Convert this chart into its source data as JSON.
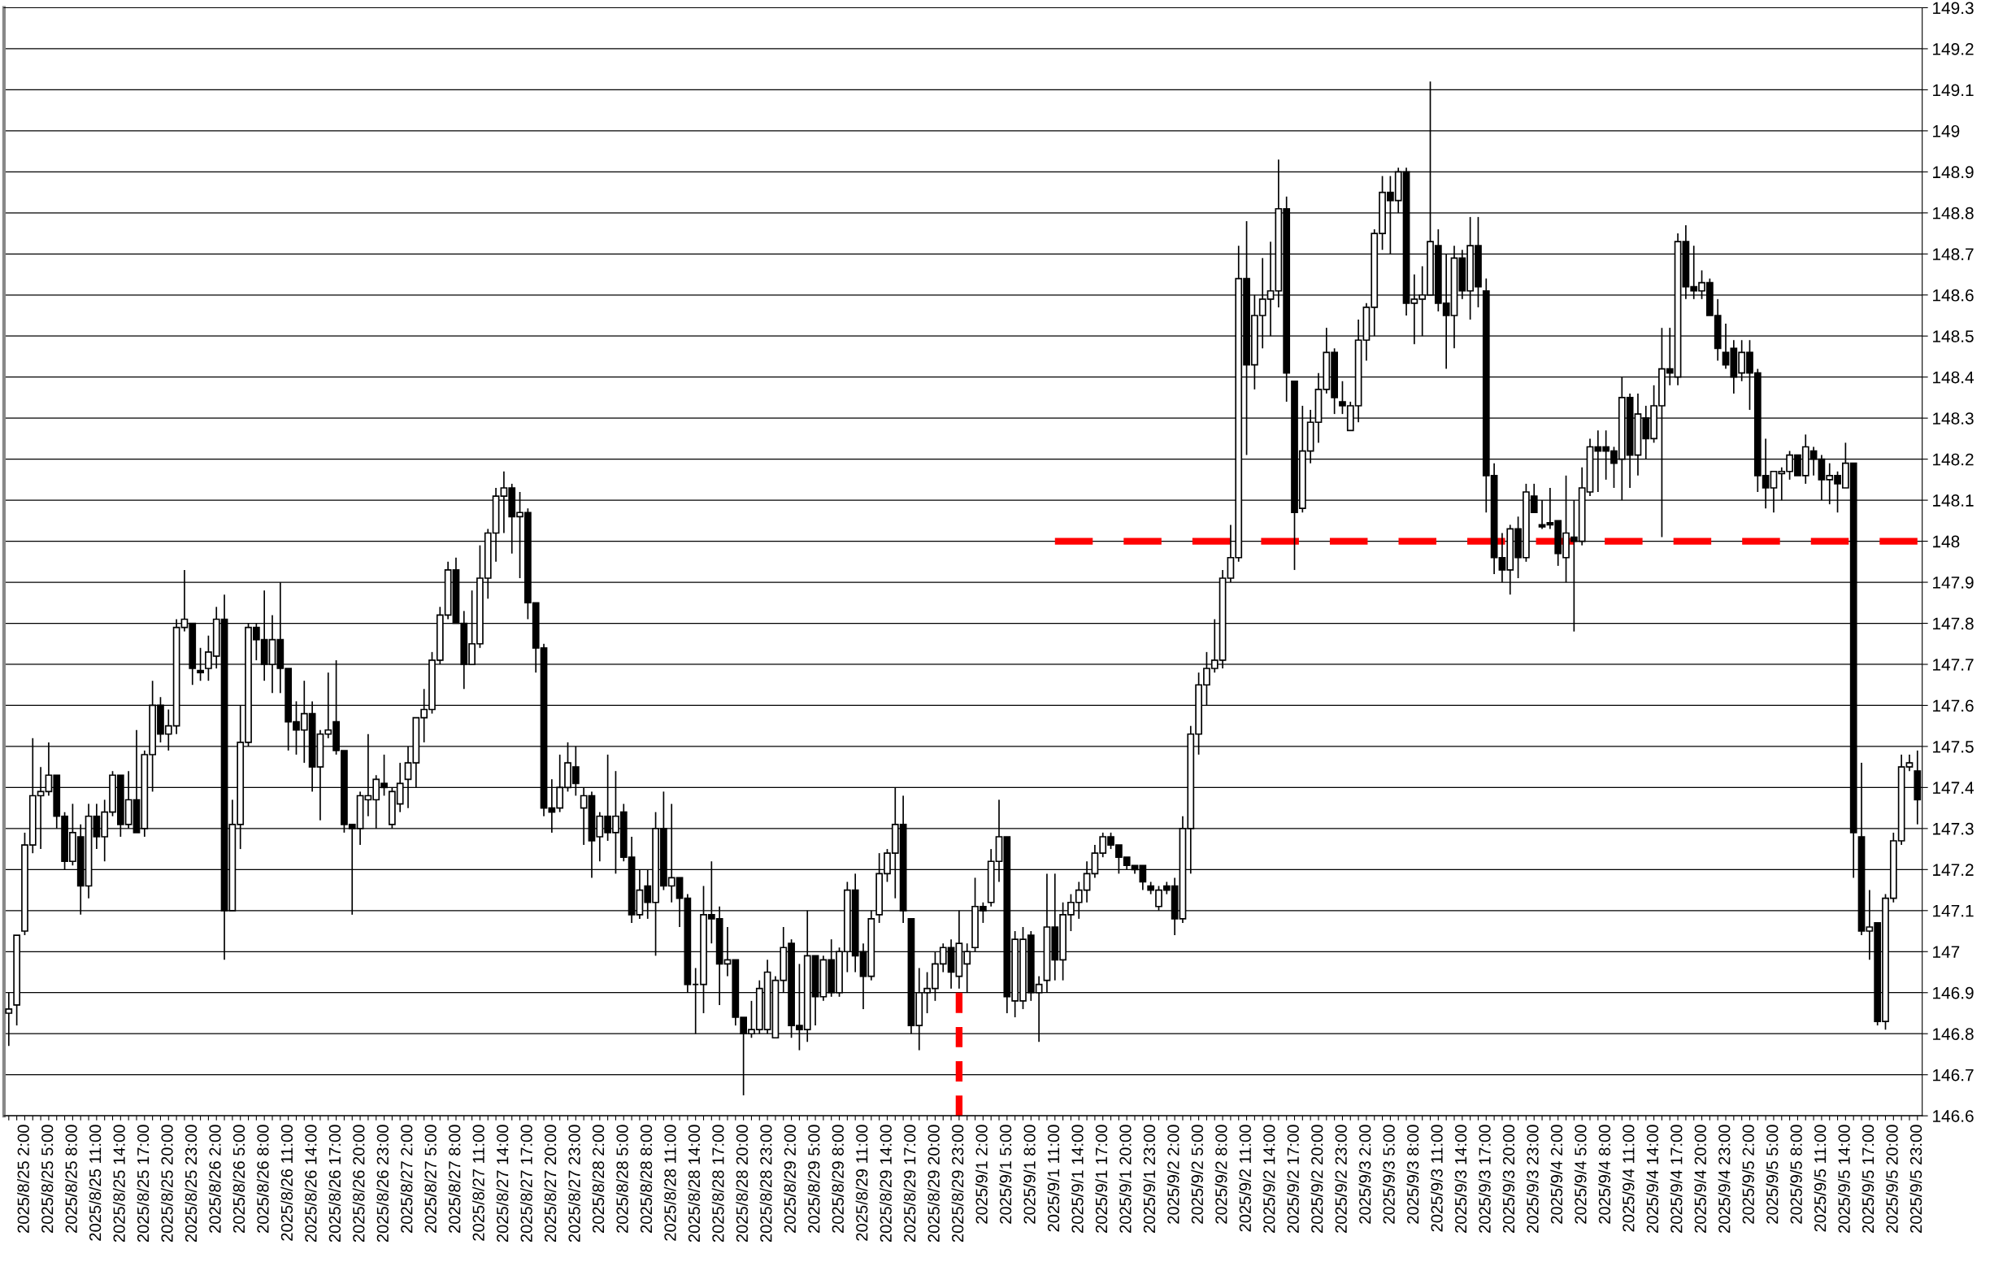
{
  "chart_data": {
    "type": "candlestick",
    "categories": [
      null,
      null,
      "2025/8/25 2:00",
      null,
      null,
      "2025/8/25 5:00",
      null,
      null,
      "2025/8/25 8:00",
      null,
      null,
      "2025/8/25 11:00",
      null,
      null,
      "2025/8/25 14:00",
      null,
      null,
      "2025/8/25 17:00",
      null,
      null,
      "2025/8/25 20:00",
      null,
      null,
      "2025/8/25 23:00",
      null,
      null,
      "2025/8/26 2:00",
      null,
      null,
      "2025/8/26 5:00",
      null,
      null,
      "2025/8/26 8:00",
      null,
      null,
      "2025/8/26 11:00",
      null,
      null,
      "2025/8/26 14:00",
      null,
      null,
      "2025/8/26 17:00",
      null,
      null,
      "2025/8/26 20:00",
      null,
      null,
      "2025/8/26 23:00",
      null,
      null,
      "2025/8/27 2:00",
      null,
      null,
      "2025/8/27 5:00",
      null,
      null,
      "2025/8/27 8:00",
      null,
      null,
      "2025/8/27 11:00",
      null,
      null,
      "2025/8/27 14:00",
      null,
      null,
      "2025/8/27 17:00",
      null,
      null,
      "2025/8/27 20:00",
      null,
      null,
      "2025/8/27 23:00",
      null,
      null,
      "2025/8/28 2:00",
      null,
      null,
      "2025/8/28 5:00",
      null,
      null,
      "2025/8/28 8:00",
      null,
      null,
      "2025/8/28 11:00",
      null,
      null,
      "2025/8/28 14:00",
      null,
      null,
      "2025/8/28 17:00",
      null,
      null,
      "2025/8/28 20:00",
      null,
      null,
      "2025/8/28 23:00",
      null,
      null,
      "2025/8/29 2:00",
      null,
      null,
      "2025/8/29 5:00",
      null,
      null,
      "2025/8/29 8:00",
      null,
      null,
      "2025/8/29 11:00",
      null,
      null,
      "2025/8/29 14:00",
      null,
      null,
      "2025/8/29 17:00",
      null,
      null,
      "2025/8/29 20:00",
      null,
      null,
      "2025/8/29 23:00",
      null,
      null,
      "2025/9/1 2:00",
      null,
      null,
      "2025/9/1 5:00",
      null,
      null,
      "2025/9/1 8:00",
      null,
      null,
      "2025/9/1 11:00",
      null,
      null,
      "2025/9/1 14:00",
      null,
      null,
      "2025/9/1 17:00",
      null,
      null,
      "2025/9/1 20:00",
      null,
      null,
      "2025/9/1 23:00",
      null,
      null,
      "2025/9/2 2:00",
      null,
      null,
      "2025/9/2 5:00",
      null,
      null,
      "2025/9/2 8:00",
      null,
      null,
      "2025/9/2 11:00",
      null,
      null,
      "2025/9/2 14:00",
      null,
      null,
      "2025/9/2 17:00",
      null,
      null,
      "2025/9/2 20:00",
      null,
      null,
      "2025/9/2 23:00",
      null,
      null,
      "2025/9/3 2:00",
      null,
      null,
      "2025/9/3 5:00",
      null,
      null,
      "2025/9/3 8:00",
      null,
      null,
      "2025/9/3 11:00",
      null,
      null,
      "2025/9/3 14:00",
      null,
      null,
      "2025/9/3 17:00",
      null,
      null,
      "2025/9/3 20:00",
      null,
      null,
      "2025/9/3 23:00",
      null,
      null,
      "2025/9/4 2:00",
      null,
      null,
      "2025/9/4 5:00",
      null,
      null,
      "2025/9/4 8:00",
      null,
      null,
      "2025/9/4 11:00",
      null,
      null,
      "2025/9/4 14:00",
      null,
      null,
      "2025/9/4 17:00",
      null,
      null,
      "2025/9/4 20:00",
      null,
      null,
      "2025/9/4 23:00",
      null,
      null,
      "2025/9/5 2:00",
      null,
      null,
      "2025/9/5 5:00",
      null,
      null,
      "2025/9/5 8:00",
      null,
      null,
      "2025/9/5 11:00",
      null,
      null,
      "2025/9/5 14:00",
      null,
      null,
      "2025/9/5 17:00",
      null,
      null,
      "2025/9/5 20:00",
      null,
      null,
      "2025/9/5 23:00"
    ],
    "ohlc": [
      [
        146.85,
        146.9,
        146.77,
        146.86
      ],
      [
        146.87,
        147.04,
        146.82,
        147.04
      ],
      [
        147.05,
        147.29,
        147.04,
        147.26
      ],
      [
        147.26,
        147.52,
        147.24,
        147.38
      ],
      [
        147.38,
        147.45,
        147.25,
        147.39
      ],
      [
        147.39,
        147.51,
        147.38,
        147.43
      ],
      [
        147.43,
        147.43,
        147.3,
        147.33
      ],
      [
        147.33,
        147.34,
        147.2,
        147.22
      ],
      [
        147.22,
        147.36,
        147.21,
        147.29
      ],
      [
        147.28,
        147.31,
        147.09,
        147.16
      ],
      [
        147.16,
        147.36,
        147.13,
        147.33
      ],
      [
        147.33,
        147.36,
        147.25,
        147.28
      ],
      [
        147.28,
        147.37,
        147.22,
        147.34
      ],
      [
        147.34,
        147.44,
        147.33,
        147.43
      ],
      [
        147.43,
        147.43,
        147.28,
        147.31
      ],
      [
        147.31,
        147.44,
        147.3,
        147.37
      ],
      [
        147.37,
        147.54,
        147.29,
        147.29
      ],
      [
        147.3,
        147.49,
        147.28,
        147.48
      ],
      [
        147.48,
        147.66,
        147.39,
        147.6
      ],
      [
        147.6,
        147.62,
        147.51,
        147.53
      ],
      [
        147.53,
        147.59,
        147.49,
        147.55
      ],
      [
        147.55,
        147.81,
        147.53,
        147.79
      ],
      [
        147.79,
        147.93,
        147.78,
        147.81
      ],
      [
        147.8,
        147.8,
        147.65,
        147.69
      ],
      [
        147.685,
        147.74,
        147.66,
        147.68
      ],
      [
        147.69,
        147.77,
        147.66,
        147.73
      ],
      [
        147.72,
        147.84,
        147.69,
        147.81
      ],
      [
        147.81,
        147.87,
        146.98,
        147.1
      ],
      [
        147.1,
        147.37,
        147.1,
        147.31
      ],
      [
        147.31,
        147.6,
        147.25,
        147.51
      ],
      [
        147.51,
        147.8,
        147.5,
        147.79
      ],
      [
        147.79,
        147.8,
        147.71,
        147.76
      ],
      [
        147.76,
        147.88,
        147.66,
        147.7
      ],
      [
        147.7,
        147.82,
        147.63,
        147.76
      ],
      [
        147.76,
        147.9,
        147.63,
        147.69
      ],
      [
        147.69,
        147.69,
        147.49,
        147.56
      ],
      [
        147.56,
        147.61,
        147.48,
        147.54
      ],
      [
        147.54,
        147.66,
        147.46,
        147.58
      ],
      [
        147.58,
        147.61,
        147.39,
        147.45
      ],
      [
        147.45,
        147.54,
        147.32,
        147.53
      ],
      [
        147.53,
        147.68,
        147.52,
        147.54
      ],
      [
        147.56,
        147.71,
        147.48,
        147.49
      ],
      [
        147.49,
        147.49,
        147.29,
        147.31
      ],
      [
        147.31,
        147.31,
        147.09,
        147.3
      ],
      [
        147.3,
        147.39,
        147.26,
        147.38
      ],
      [
        147.37,
        147.53,
        147.33,
        147.38
      ],
      [
        147.37,
        147.43,
        147.3,
        147.42
      ],
      [
        147.41,
        147.48,
        147.38,
        147.4
      ],
      [
        147.31,
        147.4,
        147.3,
        147.39
      ],
      [
        147.36,
        147.46,
        147.34,
        147.41
      ],
      [
        147.42,
        147.5,
        147.35,
        147.46
      ],
      [
        147.46,
        147.57,
        147.4,
        147.57
      ],
      [
        147.57,
        147.64,
        147.51,
        147.59
      ],
      [
        147.59,
        147.73,
        147.58,
        147.71
      ],
      [
        147.71,
        147.84,
        147.7,
        147.82
      ],
      [
        147.82,
        147.95,
        147.81,
        147.93
      ],
      [
        147.93,
        147.96,
        147.8,
        147.8
      ],
      [
        147.8,
        147.83,
        147.64,
        147.7
      ],
      [
        147.7,
        147.88,
        147.7,
        147.75
      ],
      [
        147.75,
        147.99,
        147.74,
        147.91
      ],
      [
        147.91,
        148.03,
        147.86,
        148.02
      ],
      [
        148.02,
        148.13,
        147.95,
        148.11
      ],
      [
        148.11,
        148.17,
        148.02,
        148.13
      ],
      [
        148.13,
        148.14,
        147.97,
        148.06
      ],
      [
        148.06,
        148.12,
        147.91,
        148.07
      ],
      [
        148.07,
        148.08,
        147.81,
        147.85
      ],
      [
        147.85,
        147.85,
        147.68,
        147.74
      ],
      [
        147.74,
        147.75,
        147.33,
        147.35
      ],
      [
        147.35,
        147.42,
        147.29,
        147.34
      ],
      [
        147.35,
        147.48,
        147.34,
        147.4
      ],
      [
        147.4,
        147.51,
        147.39,
        147.46
      ],
      [
        147.45,
        147.5,
        147.38,
        147.41
      ],
      [
        147.35,
        147.4,
        147.26,
        147.38
      ],
      [
        147.38,
        147.39,
        147.18,
        147.27
      ],
      [
        147.28,
        147.34,
        147.22,
        147.33
      ],
      [
        147.33,
        147.48,
        147.27,
        147.29
      ],
      [
        147.29,
        147.44,
        147.19,
        147.33
      ],
      [
        147.34,
        147.36,
        147.22,
        147.23
      ],
      [
        147.23,
        147.28,
        147.07,
        147.09
      ],
      [
        147.09,
        147.2,
        147.08,
        147.15
      ],
      [
        147.16,
        147.2,
        147.08,
        147.12
      ],
      [
        147.12,
        147.34,
        146.99,
        147.3
      ],
      [
        147.3,
        147.39,
        147.15,
        147.16
      ],
      [
        147.16,
        147.36,
        147.12,
        147.18
      ],
      [
        147.18,
        147.18,
        147.06,
        147.13
      ],
      [
        147.13,
        147.14,
        146.9,
        146.92
      ],
      [
        146.92,
        146.96,
        146.8,
        146.92
      ],
      [
        146.92,
        147.16,
        146.85,
        147.09
      ],
      [
        147.09,
        147.22,
        147.02,
        147.08
      ],
      [
        147.08,
        147.11,
        146.87,
        146.97
      ],
      [
        146.97,
        147.06,
        146.94,
        146.98
      ],
      [
        146.98,
        146.98,
        146.82,
        146.84
      ],
      [
        146.84,
        146.84,
        146.65,
        146.8
      ],
      [
        146.8,
        146.88,
        146.79,
        146.81
      ],
      [
        146.81,
        146.93,
        146.8,
        146.91
      ],
      [
        146.81,
        146.98,
        146.8,
        146.95
      ],
      [
        146.79,
        146.94,
        146.79,
        146.93
      ],
      [
        146.93,
        147.06,
        146.9,
        147.01
      ],
      [
        147.02,
        147.03,
        146.79,
        146.82
      ],
      [
        146.82,
        146.97,
        146.76,
        146.81
      ],
      [
        146.81,
        147.1,
        146.78,
        146.99
      ],
      [
        146.99,
        146.99,
        146.82,
        146.89
      ],
      [
        146.89,
        146.99,
        146.88,
        146.98
      ],
      [
        146.98,
        147.03,
        146.89,
        146.9
      ],
      [
        146.9,
        147.01,
        146.89,
        147.0
      ],
      [
        147.0,
        147.17,
        146.95,
        147.15
      ],
      [
        147.15,
        147.19,
        146.95,
        146.99
      ],
      [
        147.0,
        147.02,
        146.86,
        146.94
      ],
      [
        146.94,
        147.1,
        146.93,
        147.08
      ],
      [
        147.09,
        147.24,
        147.07,
        147.19
      ],
      [
        147.19,
        147.25,
        147.17,
        147.24
      ],
      [
        147.24,
        147.4,
        147.13,
        147.31
      ],
      [
        147.31,
        147.38,
        147.07,
        147.1
      ],
      [
        147.08,
        147.08,
        146.8,
        146.82
      ],
      [
        146.82,
        146.96,
        146.76,
        146.9
      ],
      [
        146.9,
        146.95,
        146.85,
        146.91
      ],
      [
        146.91,
        147.0,
        146.88,
        146.97
      ],
      [
        146.97,
        147.02,
        146.95,
        147.01
      ],
      [
        147.01,
        147.03,
        146.91,
        146.95
      ],
      [
        146.94,
        147.1,
        146.91,
        147.02
      ],
      [
        146.97,
        147.02,
        146.9,
        147.0
      ],
      [
        147.01,
        147.18,
        147.0,
        147.11
      ],
      [
        147.11,
        147.12,
        147.07,
        147.1
      ],
      [
        147.12,
        147.25,
        147.11,
        147.22
      ],
      [
        147.22,
        147.37,
        147.17,
        147.28
      ],
      [
        147.28,
        147.28,
        146.85,
        146.89
      ],
      [
        146.88,
        147.05,
        146.84,
        147.03
      ],
      [
        146.88,
        147.06,
        146.86,
        147.03
      ],
      [
        147.04,
        147.05,
        146.88,
        146.9
      ],
      [
        146.9,
        146.94,
        146.78,
        146.92
      ],
      [
        146.93,
        147.19,
        146.9,
        147.06
      ],
      [
        147.06,
        147.19,
        146.93,
        146.98
      ],
      [
        146.98,
        147.12,
        146.93,
        147.09
      ],
      [
        147.09,
        147.14,
        147.05,
        147.12
      ],
      [
        147.12,
        147.17,
        147.08,
        147.15
      ],
      [
        147.15,
        147.22,
        147.12,
        147.19
      ],
      [
        147.19,
        147.26,
        147.18,
        147.24
      ],
      [
        147.24,
        147.29,
        147.23,
        147.28
      ],
      [
        147.28,
        147.29,
        147.25,
        147.26
      ],
      [
        147.26,
        147.26,
        147.19,
        147.23
      ],
      [
        147.23,
        147.23,
        147.2,
        147.21
      ],
      [
        147.21,
        147.21,
        147.19,
        147.2
      ],
      [
        147.21,
        147.21,
        147.15,
        147.17
      ],
      [
        147.16,
        147.17,
        147.14,
        147.15
      ],
      [
        147.11,
        147.16,
        147.1,
        147.15
      ],
      [
        147.16,
        147.17,
        147.14,
        147.15
      ],
      [
        147.16,
        147.18,
        147.04,
        147.08
      ],
      [
        147.08,
        147.33,
        147.07,
        147.3
      ],
      [
        147.3,
        147.55,
        147.19,
        147.53
      ],
      [
        147.53,
        147.68,
        147.48,
        147.65
      ],
      [
        147.65,
        147.73,
        147.6,
        147.69
      ],
      [
        147.69,
        147.81,
        147.68,
        147.71
      ],
      [
        147.71,
        147.93,
        147.69,
        147.91
      ],
      [
        147.91,
        148.04,
        147.9,
        147.96
      ],
      [
        147.96,
        148.72,
        147.95,
        148.64
      ],
      [
        148.64,
        148.78,
        148.21,
        148.43
      ],
      [
        148.43,
        148.6,
        148.37,
        148.55
      ],
      [
        148.55,
        148.69,
        148.47,
        148.59
      ],
      [
        148.59,
        148.73,
        148.5,
        148.61
      ],
      [
        148.61,
        148.93,
        148.57,
        148.81
      ],
      [
        148.81,
        148.84,
        148.34,
        148.41
      ],
      [
        148.39,
        148.39,
        147.93,
        148.07
      ],
      [
        148.08,
        148.33,
        148.07,
        148.22
      ],
      [
        148.22,
        148.32,
        148.19,
        148.29
      ],
      [
        148.29,
        148.41,
        148.24,
        148.37
      ],
      [
        148.37,
        148.52,
        148.36,
        148.46
      ],
      [
        148.46,
        148.47,
        148.31,
        148.35
      ],
      [
        148.34,
        148.39,
        148.31,
        148.33
      ],
      [
        148.27,
        148.34,
        148.27,
        148.33
      ],
      [
        148.33,
        148.54,
        148.29,
        148.49
      ],
      [
        148.49,
        148.58,
        148.44,
        148.57
      ],
      [
        148.57,
        148.76,
        148.5,
        148.75
      ],
      [
        148.75,
        148.89,
        148.71,
        148.85
      ],
      [
        148.85,
        148.89,
        148.7,
        148.83
      ],
      [
        148.83,
        148.91,
        148.8,
        148.9
      ],
      [
        148.9,
        148.91,
        148.55,
        148.58
      ],
      [
        148.58,
        148.65,
        148.48,
        148.59
      ],
      [
        148.59,
        148.67,
        148.5,
        148.6
      ],
      [
        148.6,
        149.12,
        148.6,
        148.73
      ],
      [
        148.72,
        148.76,
        148.56,
        148.58
      ],
      [
        148.58,
        148.7,
        148.42,
        148.55
      ],
      [
        148.55,
        148.72,
        148.47,
        148.69
      ],
      [
        148.69,
        148.71,
        148.59,
        148.61
      ],
      [
        148.61,
        148.79,
        148.54,
        148.72
      ],
      [
        148.72,
        148.79,
        148.57,
        148.62
      ],
      [
        148.61,
        148.64,
        148.07,
        148.16
      ],
      [
        148.16,
        148.19,
        147.92,
        147.96
      ],
      [
        147.96,
        148.02,
        147.9,
        147.93
      ],
      [
        147.93,
        148.04,
        147.87,
        148.03
      ],
      [
        148.03,
        148.06,
        147.91,
        147.96
      ],
      [
        147.96,
        148.14,
        147.95,
        148.12
      ],
      [
        148.11,
        148.14,
        148.07,
        148.07
      ],
      [
        148.04,
        148.1,
        148.03,
        148.035
      ],
      [
        148.045,
        148.13,
        148.03,
        148.04
      ],
      [
        148.05,
        148.05,
        147.94,
        147.97
      ],
      [
        147.96,
        148.16,
        147.9,
        148.02
      ],
      [
        148.01,
        148.1,
        147.78,
        148.0
      ],
      [
        148.0,
        148.18,
        147.99,
        148.13
      ],
      [
        148.12,
        148.25,
        148.11,
        148.23
      ],
      [
        148.23,
        148.27,
        148.12,
        148.22
      ],
      [
        148.23,
        148.27,
        148.15,
        148.22
      ],
      [
        148.22,
        148.23,
        148.13,
        148.19
      ],
      [
        148.2,
        148.4,
        148.1,
        148.35
      ],
      [
        148.35,
        148.36,
        148.13,
        148.21
      ],
      [
        148.21,
        148.36,
        148.16,
        148.31
      ],
      [
        148.3,
        148.33,
        148.2,
        148.25
      ],
      [
        148.25,
        148.38,
        148.24,
        148.33
      ],
      [
        148.33,
        148.52,
        148.01,
        148.42
      ],
      [
        148.42,
        148.52,
        148.38,
        148.41
      ],
      [
        148.4,
        148.75,
        148.38,
        148.73
      ],
      [
        148.73,
        148.77,
        148.59,
        148.62
      ],
      [
        148.62,
        148.72,
        148.59,
        148.61
      ],
      [
        148.61,
        148.66,
        148.59,
        148.63
      ],
      [
        148.63,
        148.64,
        148.55,
        148.55
      ],
      [
        148.55,
        148.59,
        148.44,
        148.47
      ],
      [
        148.46,
        148.53,
        148.42,
        148.43
      ],
      [
        148.47,
        148.49,
        148.36,
        148.4
      ],
      [
        148.41,
        148.49,
        148.39,
        148.46
      ],
      [
        148.46,
        148.49,
        148.32,
        148.41
      ],
      [
        148.41,
        148.42,
        148.12,
        148.16
      ],
      [
        148.16,
        148.25,
        148.08,
        148.13
      ],
      [
        148.13,
        148.17,
        148.07,
        148.17
      ],
      [
        148.165,
        148.18,
        148.1,
        148.17
      ],
      [
        148.17,
        148.22,
        148.15,
        148.21
      ],
      [
        148.21,
        148.21,
        148.16,
        148.16
      ],
      [
        148.16,
        148.26,
        148.14,
        148.23
      ],
      [
        148.22,
        148.23,
        148.16,
        148.2
      ],
      [
        148.2,
        148.21,
        148.1,
        148.15
      ],
      [
        148.15,
        148.19,
        148.09,
        148.16
      ],
      [
        148.16,
        148.17,
        148.07,
        148.14
      ],
      [
        148.13,
        148.24,
        148.13,
        148.19
      ],
      [
        148.19,
        148.19,
        147.18,
        147.29
      ],
      [
        147.28,
        147.46,
        147.04,
        147.05
      ],
      [
        147.05,
        147.15,
        146.98,
        147.06
      ],
      [
        147.07,
        147.07,
        146.82,
        146.83
      ],
      [
        146.83,
        147.14,
        146.81,
        147.13
      ],
      [
        147.13,
        147.29,
        147.12,
        147.27
      ],
      [
        147.27,
        147.48,
        147.26,
        147.45
      ],
      [
        147.45,
        147.48,
        147.44,
        147.46
      ],
      [
        147.44,
        147.49,
        147.31,
        147.37
      ]
    ],
    "color": "#000000",
    "ylim": [
      146.6,
      149.3
    ],
    "yticks": [
      146.6,
      146.7,
      146.8,
      146.9,
      147,
      147.1,
      147.2,
      147.3,
      147.4,
      147.5,
      147.6,
      147.7,
      147.8,
      147.9,
      148,
      148.1,
      148.2,
      148.3,
      148.4,
      148.5,
      148.6,
      148.7,
      148.8,
      148.9,
      149,
      149.1,
      149.2,
      149.3
    ],
    "grid": "y",
    "series": [
      {
        "type": "line",
        "x": [
          "2025/9/1 11:00",
          "2025/9/5 23:00"
        ],
        "values": [
          148,
          148
        ],
        "color": "#ff0000",
        "line_style": "dashed"
      },
      {
        "type": "line",
        "x": [
          "2025/8/29 23:00",
          "2025/8/29 23:00"
        ],
        "values": [
          146.9,
          146.6
        ],
        "color": "#ff0000",
        "line_style": "dashed"
      }
    ]
  }
}
